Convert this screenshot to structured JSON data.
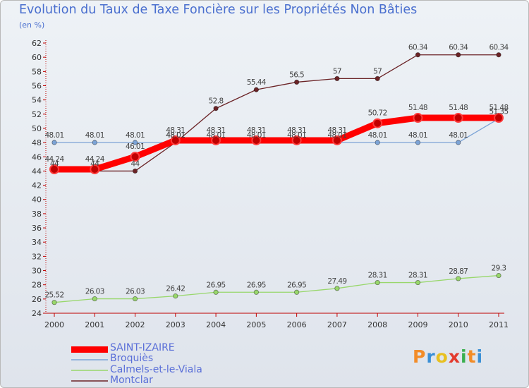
{
  "title": "Evolution du Taux de Taxe Foncière sur les Propriétés Non Bâties",
  "unit": "(en %)",
  "logo": "Proxiti",
  "chart_data": {
    "type": "line",
    "title": "Evolution du Taux de Taxe Foncière sur les Propriétés Non Bâties",
    "ylabel": "(en %)",
    "xlabel": "",
    "ylim": [
      24,
      62
    ],
    "ytick_step": 2,
    "grid": false,
    "legend_position": "bottom-left",
    "categories": [
      "2000",
      "2001",
      "2002",
      "2003",
      "2004",
      "2005",
      "2006",
      "2007",
      "2008",
      "2009",
      "2010",
      "2011"
    ],
    "series": [
      {
        "name": "Montclar",
        "color": "#6b2326",
        "values": [
          44,
          44,
          44,
          48.01,
          52.8,
          55.44,
          56.5,
          57,
          57,
          60.34,
          60.34,
          60.34
        ],
        "labels": [
          "44",
          "44",
          "44",
          "48.01",
          "52.8",
          "55.44",
          "56.5",
          "57",
          "57",
          "60.34",
          "60.34",
          "60.34"
        ]
      },
      {
        "name": "Calmels-et-le-Viala",
        "color": "#98d76b",
        "values": [
          25.52,
          26.03,
          26.03,
          26.42,
          26.95,
          26.95,
          26.95,
          27.49,
          28.31,
          28.31,
          28.87,
          29.3
        ],
        "labels": [
          "25.52",
          "26.03",
          "26.03",
          "26.42",
          "26.95",
          "26.95",
          "26.95",
          "27.49",
          "28.31",
          "28.31",
          "28.87",
          "29.3"
        ]
      },
      {
        "name": "Broquiès",
        "color": "#7ba3d6",
        "values": [
          48.01,
          48.01,
          48.01,
          48.01,
          48.01,
          48.01,
          48.01,
          48.01,
          48.01,
          48.01,
          48.01,
          51.35
        ],
        "labels": [
          "48.01",
          "48.01",
          "48.01",
          "48.01",
          "48.01",
          "48.01",
          "48.01",
          "48.01",
          "48.01",
          "48.01",
          "48.01",
          "51.35"
        ]
      },
      {
        "name": "SAINT-IZAIRE",
        "color": "#ff0000",
        "values": [
          44.24,
          44.24,
          46.01,
          48.31,
          48.31,
          48.31,
          48.31,
          48.31,
          50.72,
          51.48,
          51.48,
          51.48
        ],
        "labels": [
          "44.24",
          "44.24",
          "46.01",
          "48.31",
          "48.31",
          "48.31",
          "48.31",
          "48.31",
          "50.72",
          "51.48",
          "51.48",
          "51.48"
        ]
      }
    ],
    "legend": [
      "SAINT-IZAIRE",
      "Broquiès",
      "Calmels-et-le-Viala",
      "Montclar"
    ]
  },
  "colors": {
    "title": "#4a6fcf",
    "axis": "#c00000",
    "logo_letters": [
      "#f28c28",
      "#3a8fd6",
      "#e8c020",
      "#e33b2e",
      "#3aaf4f",
      "#f28c28",
      "#3a8fd6"
    ]
  }
}
